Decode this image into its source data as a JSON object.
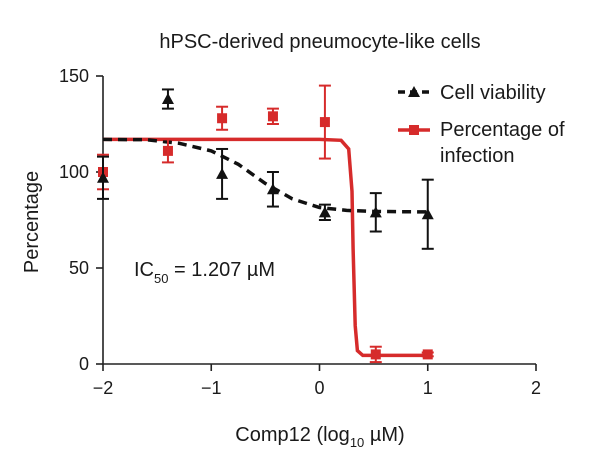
{
  "chart_data": {
    "type": "scatter",
    "title": "hPSC-derived pneumocyte-like cells",
    "xlabel": {
      "main": "Comp12 (log",
      "sub": "10",
      "rest": " µM)"
    },
    "ylabel": "Percentage",
    "xlim": [
      -2,
      2
    ],
    "ylim": [
      0,
      150
    ],
    "x_ticks": [
      -2,
      -1,
      0,
      1,
      2
    ],
    "x_tick_labels": [
      "−2",
      "−1",
      "0",
      "1",
      "2"
    ],
    "y_ticks": [
      0,
      50,
      100,
      150
    ],
    "y_tick_labels": [
      "0",
      "50",
      "100",
      "150"
    ],
    "annotation": {
      "prefix": "IC",
      "sub": "50",
      "rest": " = 1.207 µM"
    },
    "legend_position": "top-right",
    "series": [
      {
        "name": "Cell viability",
        "color": "#111111",
        "marker": "triangle",
        "line": "dashed",
        "x": [
          -2.0,
          -1.4,
          -0.9,
          -0.43,
          0.05,
          0.52,
          1.0
        ],
        "y": [
          97,
          138,
          99,
          91,
          79,
          79,
          78
        ],
        "err": [
          11,
          5,
          13,
          9,
          4,
          10,
          18
        ],
        "fit_x": [
          -2.0,
          -1.6,
          -1.3,
          -1.0,
          -0.75,
          -0.5,
          -0.25,
          0.0,
          0.25,
          0.5,
          0.75,
          1.0
        ],
        "fit_y": [
          117,
          116.8,
          115,
          111,
          104,
          94,
          86,
          81.5,
          80,
          79.5,
          79.3,
          79.2
        ]
      },
      {
        "name": "Percentage of infection",
        "name_lines": [
          "Percentage of",
          "infection"
        ],
        "color": "#d62b2b",
        "marker": "square",
        "line": "solid",
        "x": [
          -2.0,
          -1.4,
          -0.9,
          -0.43,
          0.05,
          0.52,
          1.0
        ],
        "y": [
          100,
          111,
          128,
          129,
          126,
          5,
          5
        ],
        "err": [
          9,
          6,
          6,
          4,
          19,
          4,
          1
        ],
        "fit_x": [
          -2.0,
          -1.0,
          0.0,
          0.2,
          0.27,
          0.3,
          0.31,
          0.33,
          0.35,
          0.4,
          0.6,
          1.0
        ],
        "fit_y": [
          117,
          117,
          117,
          116.5,
          112,
          90,
          60,
          20,
          7,
          4.5,
          4.5,
          4.5
        ]
      }
    ]
  }
}
